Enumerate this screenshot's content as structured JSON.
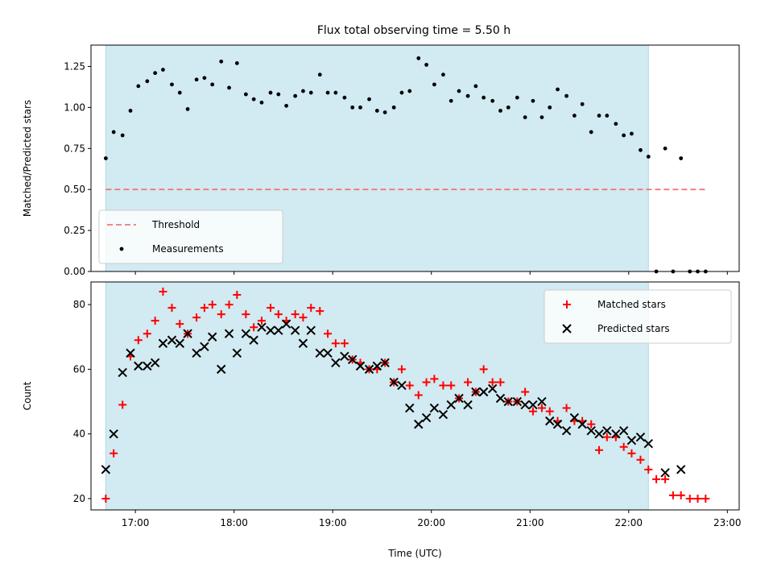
{
  "title": "Flux total observing time = 5.50 h",
  "chart_data": [
    {
      "type": "scatter",
      "ylabel": "Matched/Predicted stars",
      "xlim": [
        16.55,
        23.12
      ],
      "ylim": [
        0,
        1.38
      ],
      "yticks": [
        0,
        0.25,
        0.5,
        0.75,
        1.0,
        1.25
      ],
      "ytick_labels": [
        "0.00",
        "0.25",
        "0.50",
        "0.75",
        "1.00",
        "1.25"
      ],
      "xticks": [
        17,
        18,
        19,
        20,
        21,
        22,
        23
      ],
      "shaded_interval": [
        16.7,
        22.2
      ],
      "shade_color": "#add8e6",
      "grid": false,
      "legend_position": "lower left",
      "threshold": {
        "name": "Threshold",
        "y": 0.5,
        "x": [
          16.7,
          22.8
        ],
        "color": "#f07878",
        "style": "dashed"
      },
      "series": [
        {
          "name": "Measurements",
          "color": "#000000",
          "marker": "dot",
          "x": [
            16.7,
            16.78,
            16.87,
            16.95,
            17.03,
            17.12,
            17.2,
            17.28,
            17.37,
            17.45,
            17.53,
            17.62,
            17.7,
            17.78,
            17.87,
            17.95,
            18.03,
            18.12,
            18.2,
            18.28,
            18.37,
            18.45,
            18.53,
            18.62,
            18.7,
            18.78,
            18.87,
            18.95,
            19.03,
            19.12,
            19.2,
            19.28,
            19.37,
            19.45,
            19.53,
            19.62,
            19.7,
            19.78,
            19.87,
            19.95,
            20.03,
            20.12,
            20.2,
            20.28,
            20.37,
            20.45,
            20.53,
            20.62,
            20.7,
            20.78,
            20.87,
            20.95,
            21.03,
            21.12,
            21.2,
            21.28,
            21.37,
            21.45,
            21.53,
            21.62,
            21.7,
            21.78,
            21.87,
            21.95,
            22.03,
            22.12,
            22.2,
            22.28,
            22.37,
            22.53,
            22.62,
            22.7,
            22.78
          ],
          "y": [
            0.69,
            0.85,
            0.83,
            0.98,
            1.13,
            1.16,
            1.21,
            1.23,
            1.14,
            1.09,
            0.99,
            1.17,
            1.18,
            1.14,
            1.28,
            1.12,
            1.27,
            1.08,
            1.05,
            1.03,
            1.09,
            1.08,
            1.01,
            1.07,
            1.1,
            1.09,
            1.2,
            1.09,
            1.09,
            1.06,
            1.0,
            1.0,
            1.05,
            0.98,
            0.97,
            1.0,
            1.09,
            1.1,
            1.3,
            1.26,
            1.14,
            1.2,
            1.04,
            1.1,
            1.07,
            1.13,
            1.06,
            1.04,
            0.98,
            1.0,
            1.06,
            0.94,
            1.04,
            0.94,
            1.0,
            1.11,
            1.07,
            0.95,
            1.02,
            0.85,
            0.95,
            0.95,
            0.9,
            0.83,
            0.84,
            0.74,
            0.7,
            0.0,
            0.75,
            0.69,
            0.0,
            0.0,
            0.0
          ],
          "y_extra_x": [
            22.45
          ],
          "y_extra": [
            0.0
          ]
        }
      ]
    },
    {
      "type": "scatter",
      "xlabel": "Time (UTC)",
      "ylabel": "Count",
      "xlim": [
        16.55,
        23.12
      ],
      "ylim": [
        16.5,
        87
      ],
      "yticks": [
        20,
        40,
        60,
        80
      ],
      "xticks": [
        17,
        18,
        19,
        20,
        21,
        22,
        23
      ],
      "xtick_labels": [
        "17:00",
        "18:00",
        "19:00",
        "20:00",
        "21:00",
        "22:00",
        "23:00"
      ],
      "shaded_interval": [
        16.7,
        22.2
      ],
      "shade_color": "#add8e6",
      "grid": false,
      "legend_position": "upper right",
      "series": [
        {
          "name": "Matched stars",
          "color": "#ff0000",
          "marker": "plus",
          "x": [
            16.7,
            16.78,
            16.87,
            16.95,
            17.03,
            17.12,
            17.2,
            17.28,
            17.37,
            17.45,
            17.53,
            17.62,
            17.7,
            17.78,
            17.87,
            17.95,
            18.03,
            18.12,
            18.2,
            18.28,
            18.37,
            18.45,
            18.53,
            18.62,
            18.7,
            18.78,
            18.87,
            18.95,
            19.03,
            19.12,
            19.2,
            19.28,
            19.37,
            19.45,
            19.53,
            19.62,
            19.7,
            19.78,
            19.87,
            19.95,
            20.03,
            20.12,
            20.2,
            20.28,
            20.37,
            20.45,
            20.53,
            20.62,
            20.7,
            20.78,
            20.87,
            20.95,
            21.03,
            21.12,
            21.2,
            21.28,
            21.37,
            21.45,
            21.53,
            21.62,
            21.7,
            21.78,
            21.87,
            21.95,
            22.03,
            22.12,
            22.2,
            22.28,
            22.37,
            22.45,
            22.53,
            22.62,
            22.7,
            22.78
          ],
          "y": [
            20,
            34,
            49,
            64,
            69,
            71,
            75,
            84,
            79,
            74,
            71,
            76,
            79,
            80,
            77,
            80,
            83,
            77,
            73,
            75,
            79,
            77,
            75,
            77,
            76,
            79,
            78,
            71,
            68,
            68,
            63,
            62,
            60,
            60,
            62,
            56,
            60,
            55,
            52,
            56,
            57,
            55,
            55,
            51,
            56,
            53,
            60,
            56,
            56,
            50,
            50,
            53,
            47,
            48,
            47,
            44,
            48,
            44,
            44,
            43,
            35,
            39,
            39,
            36,
            34,
            32,
            29,
            26,
            26,
            21,
            21,
            20,
            20,
            20
          ]
        },
        {
          "name": "Predicted stars",
          "color": "#000000",
          "marker": "x",
          "x": [
            16.7,
            16.78,
            16.87,
            16.95,
            17.03,
            17.12,
            17.2,
            17.28,
            17.37,
            17.45,
            17.53,
            17.62,
            17.7,
            17.78,
            17.87,
            17.95,
            18.03,
            18.12,
            18.2,
            18.28,
            18.37,
            18.45,
            18.53,
            18.62,
            18.7,
            18.78,
            18.87,
            18.95,
            19.03,
            19.12,
            19.2,
            19.28,
            19.37,
            19.45,
            19.53,
            19.62,
            19.7,
            19.78,
            19.87,
            19.95,
            20.03,
            20.12,
            20.2,
            20.28,
            20.37,
            20.45,
            20.53,
            20.62,
            20.7,
            20.78,
            20.87,
            20.95,
            21.03,
            21.12,
            21.2,
            21.28,
            21.37,
            21.45,
            21.53,
            21.62,
            21.7,
            21.78,
            21.87,
            21.95,
            22.03,
            22.12,
            22.2,
            22.37,
            22.53
          ],
          "y": [
            29,
            40,
            59,
            65,
            61,
            61,
            62,
            68,
            69,
            68,
            71,
            65,
            67,
            70,
            60,
            71,
            65,
            71,
            69,
            73,
            72,
            72,
            74,
            72,
            68,
            72,
            65,
            65,
            62,
            64,
            63,
            61,
            60,
            61,
            62,
            56,
            55,
            48,
            43,
            45,
            48,
            46,
            49,
            51,
            49,
            53,
            53,
            54,
            51,
            50,
            50,
            49,
            49,
            50,
            44,
            43,
            41,
            45,
            43,
            41,
            40,
            41,
            40,
            41,
            38,
            39,
            37,
            28,
            29
          ]
        }
      ]
    }
  ]
}
